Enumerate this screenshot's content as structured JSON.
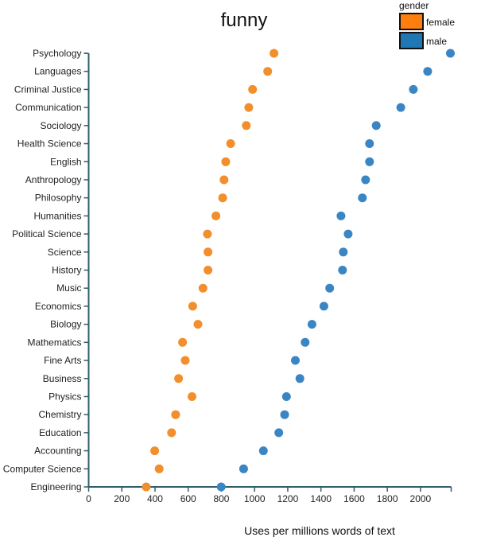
{
  "chart_data": {
    "type": "scatter",
    "subtype": "dot-plot",
    "title": "funny",
    "xlabel": "Uses per millions words of text",
    "ylabel": "",
    "xlim": [
      0,
      2185
    ],
    "x_ticks": [
      0,
      200,
      400,
      600,
      800,
      1000,
      1200,
      1400,
      1600,
      1800,
      2000
    ],
    "grid": false,
    "legend": {
      "title": "gender",
      "position": "top-right",
      "entries": [
        {
          "name": "female",
          "color": "#ff7f0e"
        },
        {
          "name": "male",
          "color": "#1f77b4"
        }
      ]
    },
    "categories": [
      "Psychology",
      "Languages",
      "Criminal Justice",
      "Communication",
      "Sociology",
      "Health Science",
      "English",
      "Anthropology",
      "Philosophy",
      "Humanities",
      "Political Science",
      "Science",
      "History",
      "Music",
      "Economics",
      "Biology",
      "Mathematics",
      "Fine Arts",
      "Business",
      "Physics",
      "Chemistry",
      "Education",
      "Accounting",
      "Computer Science",
      "Engineering"
    ],
    "series": [
      {
        "name": "female",
        "color": "#f28e2b",
        "values": [
          1117,
          1079,
          988,
          965,
          950,
          856,
          826,
          816,
          808,
          767,
          716,
          719,
          719,
          689,
          627,
          659,
          566,
          582,
          542,
          623,
          524,
          500,
          398,
          425,
          347
        ]
      },
      {
        "name": "male",
        "color": "#3a86c4",
        "values": [
          2180,
          2043,
          1957,
          1881,
          1733,
          1693,
          1693,
          1669,
          1650,
          1521,
          1564,
          1535,
          1530,
          1453,
          1418,
          1346,
          1305,
          1246,
          1273,
          1192,
          1181,
          1146,
          1053,
          934,
          799
        ]
      }
    ]
  },
  "colors": {
    "axis": "#2f5f6a"
  }
}
